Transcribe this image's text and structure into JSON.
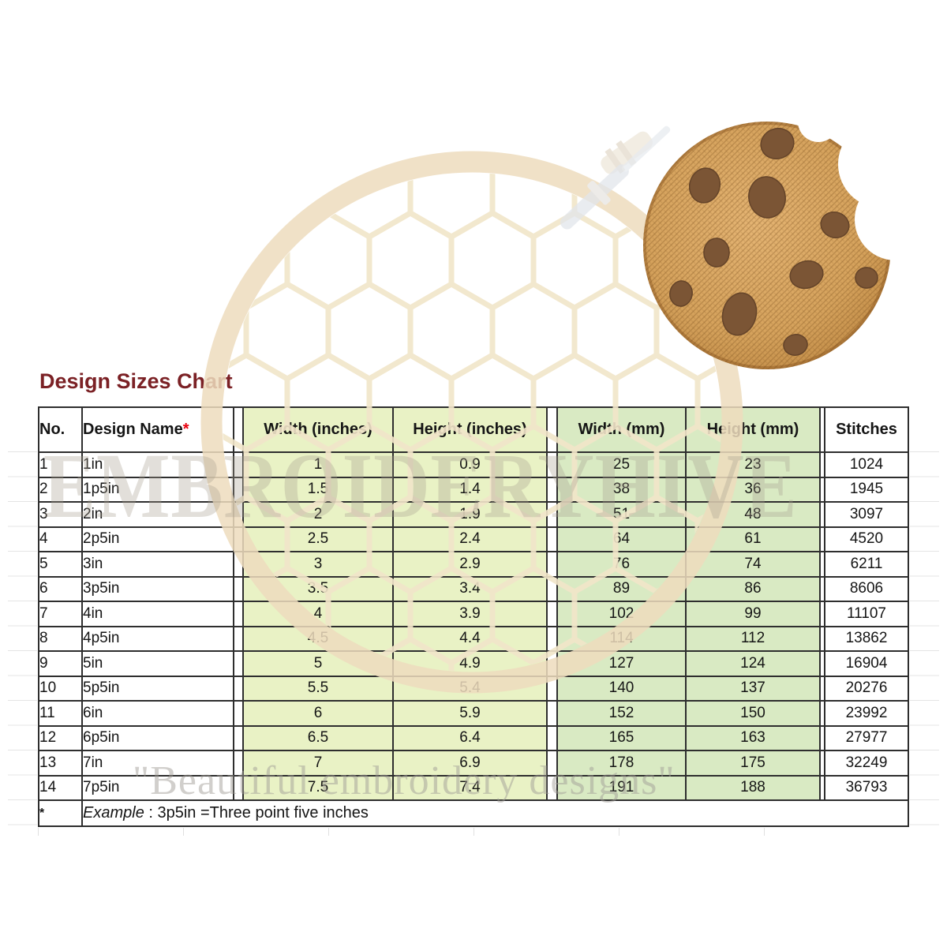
{
  "title": "Design Sizes Chart",
  "watermark": {
    "brand": "EMBROIDERYHIVE",
    "tagline": "\"Beautiful embroidery designs\""
  },
  "images": {
    "cookie": "chocolate-chip-cookie-embroidery-with-bite",
    "hoop": "embroidery-hoop-honeycomb-watermark",
    "needle": "embroidery-needle-watermark"
  },
  "colors": {
    "title": "#7B2125",
    "asterisk": "#E8000D",
    "inches_cell_bg": "#E9F2C5",
    "mm_cell_bg": "#D9EAC3",
    "table_border": "#2E2E2E",
    "cookie_base": "#D5A25C",
    "cookie_chip": "#7B5535"
  },
  "table": {
    "headers": {
      "no": "No.",
      "design_name": "Design Name",
      "design_name_mark": "*",
      "width_in": "Width (inches)",
      "height_in": "Height (inches)",
      "width_mm": "Width (mm)",
      "height_mm": "Height (mm)",
      "stitches": "Stitches"
    },
    "rows": [
      {
        "no": "1",
        "name": "1in",
        "w_in": "1",
        "h_in": "0.9",
        "w_mm": "25",
        "h_mm": "23",
        "st": "1024"
      },
      {
        "no": "2",
        "name": "1p5in",
        "w_in": "1.5",
        "h_in": "1.4",
        "w_mm": "38",
        "h_mm": "36",
        "st": "1945"
      },
      {
        "no": "3",
        "name": "2in",
        "w_in": "2",
        "h_in": "1.9",
        "w_mm": "51",
        "h_mm": "48",
        "st": "3097"
      },
      {
        "no": "4",
        "name": "2p5in",
        "w_in": "2.5",
        "h_in": "2.4",
        "w_mm": "64",
        "h_mm": "61",
        "st": "4520"
      },
      {
        "no": "5",
        "name": "3in",
        "w_in": "3",
        "h_in": "2.9",
        "w_mm": "76",
        "h_mm": "74",
        "st": "6211"
      },
      {
        "no": "6",
        "name": "3p5in",
        "w_in": "3.5",
        "h_in": "3.4",
        "w_mm": "89",
        "h_mm": "86",
        "st": "8606"
      },
      {
        "no": "7",
        "name": "4in",
        "w_in": "4",
        "h_in": "3.9",
        "w_mm": "102",
        "h_mm": "99",
        "st": "11107"
      },
      {
        "no": "8",
        "name": "4p5in",
        "w_in": "4.5",
        "h_in": "4.4",
        "w_mm": "114",
        "h_mm": "112",
        "st": "13862"
      },
      {
        "no": "9",
        "name": "5in",
        "w_in": "5",
        "h_in": "4.9",
        "w_mm": "127",
        "h_mm": "124",
        "st": "16904"
      },
      {
        "no": "10",
        "name": "5p5in",
        "w_in": "5.5",
        "h_in": "5.4",
        "w_mm": "140",
        "h_mm": "137",
        "st": "20276"
      },
      {
        "no": "11",
        "name": "6in",
        "w_in": "6",
        "h_in": "5.9",
        "w_mm": "152",
        "h_mm": "150",
        "st": "23992"
      },
      {
        "no": "12",
        "name": "6p5in",
        "w_in": "6.5",
        "h_in": "6.4",
        "w_mm": "165",
        "h_mm": "163",
        "st": "27977"
      },
      {
        "no": "13",
        "name": "7in",
        "w_in": "7",
        "h_in": "6.9",
        "w_mm": "178",
        "h_mm": "175",
        "st": "32249"
      },
      {
        "no": "14",
        "name": "7p5in",
        "w_in": "7.5",
        "h_in": "7.4",
        "w_mm": "191",
        "h_mm": "188",
        "st": "36793"
      }
    ],
    "footnote": {
      "marker": "*",
      "example_label": "Example",
      "example_text": " : 3p5in =Three point five inches"
    }
  }
}
